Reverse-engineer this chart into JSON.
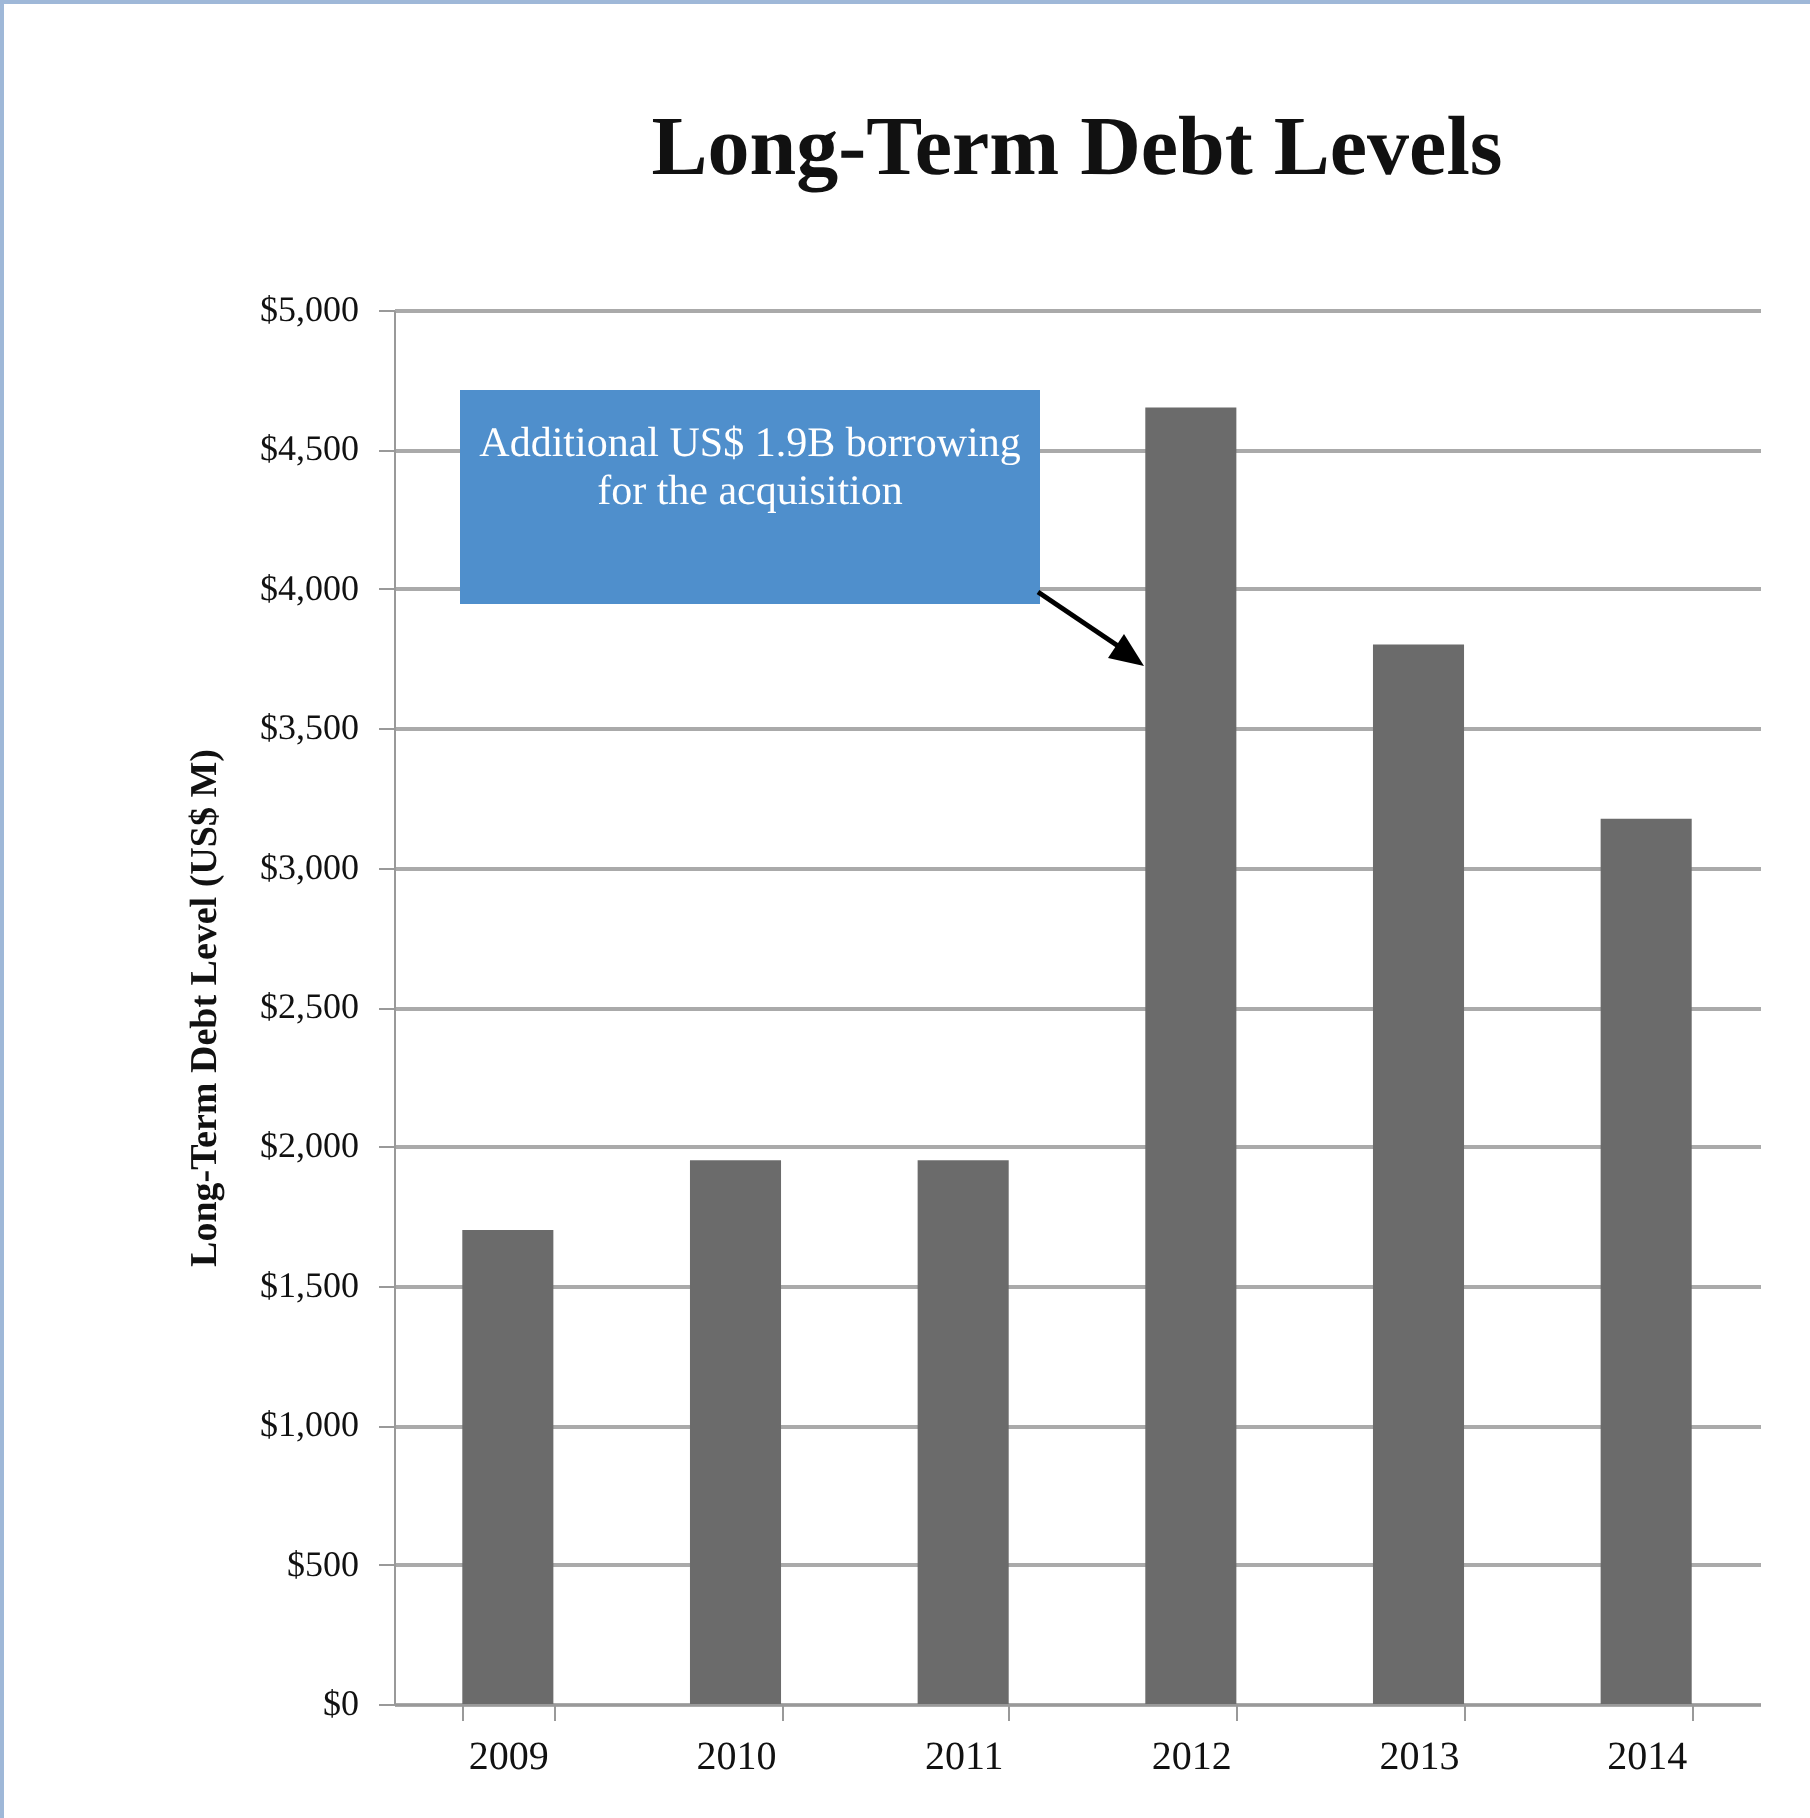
{
  "chart_data": {
    "type": "bar",
    "title": "Long-Term Debt Levels",
    "ylabel": "Long-Term Debt Level  (US$ M)",
    "categories": [
      "2009",
      "2010",
      "2011",
      "2012",
      "2013",
      "2014"
    ],
    "values": [
      1700,
      1950,
      1950,
      4650,
      3800,
      3175
    ],
    "color": "#6b6b6b",
    "ylim": [
      0,
      5000
    ],
    "yticks": [
      {
        "value": 0,
        "label": "$0"
      },
      {
        "value": 500,
        "label": "$500"
      },
      {
        "value": 1000,
        "label": "$1,000"
      },
      {
        "value": 1500,
        "label": "$1,500"
      },
      {
        "value": 2000,
        "label": "$2,000"
      },
      {
        "value": 2500,
        "label": "$2,500"
      },
      {
        "value": 3000,
        "label": "$3,000"
      },
      {
        "value": 3500,
        "label": "$3,500"
      },
      {
        "value": 4000,
        "label": "$4,000"
      },
      {
        "value": 4500,
        "label": "$4,500"
      },
      {
        "value": 5000,
        "label": "$5,000"
      }
    ],
    "grid": "y",
    "annotations": [
      "Additional US$ 1.9B borrowing for the acquisition"
    ]
  }
}
